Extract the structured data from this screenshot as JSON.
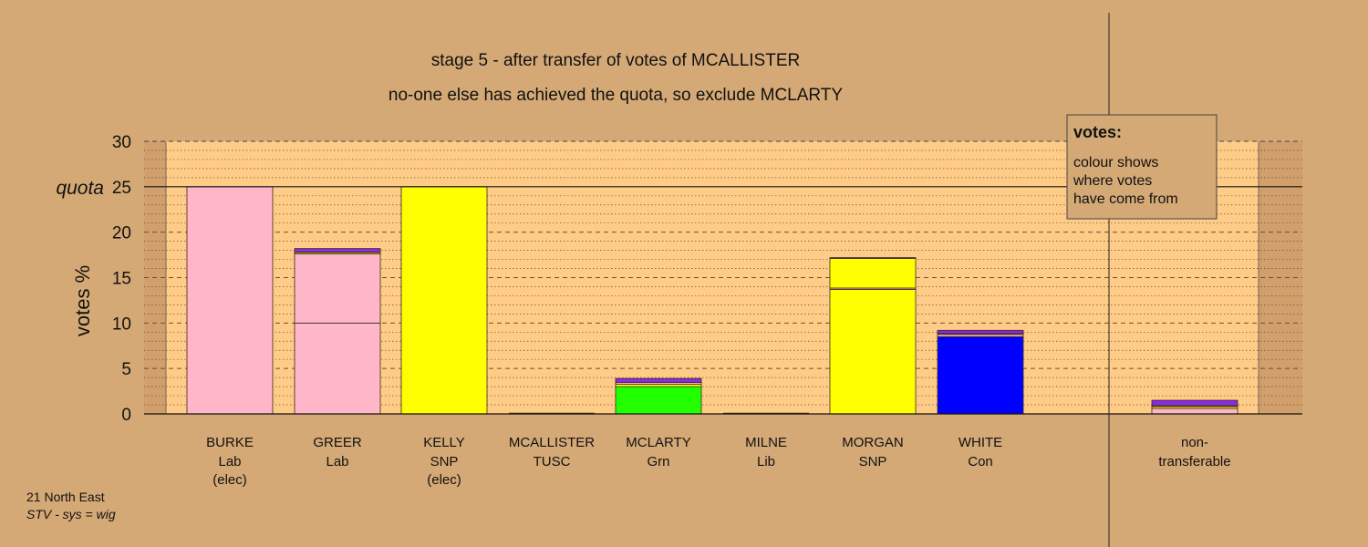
{
  "chart_data": {
    "type": "bar",
    "title": "stage 5 - after transfer of votes of MCALLISTER",
    "subtitle": "no-one else has achieved the quota, so exclude MCLARTY",
    "ylabel": "votes %",
    "ylim": [
      0,
      30
    ],
    "yticks": [
      0,
      5,
      10,
      15,
      20,
      25,
      30
    ],
    "quota": {
      "label": "quota",
      "value": 25
    },
    "grid": true,
    "colors": {
      "Lab": "#ffb6c8",
      "SNP": "#ffff00",
      "Grn": "#22ff00",
      "Con": "#0000ff",
      "Lib": "#ff9a00",
      "TUSC": "#8a2be2",
      "background": "#d5a976"
    },
    "candidates": [
      {
        "name": "BURKE",
        "party": "Lab",
        "note": "(elec)",
        "segments": [
          {
            "from": "Lab",
            "value": 25.0
          }
        ]
      },
      {
        "name": "GREER",
        "party": "Lab",
        "note": "",
        "segments": [
          {
            "from": "Lab",
            "value": 10.0
          },
          {
            "from": "Lab",
            "value": 7.6
          },
          {
            "from": "SNP",
            "value": 0.15
          },
          {
            "from": "Lib",
            "value": 0.05
          },
          {
            "from": "TUSC",
            "value": 0.4
          }
        ]
      },
      {
        "name": "KELLY",
        "party": "SNP",
        "note": "(elec)",
        "segments": [
          {
            "from": "SNP",
            "value": 25.0
          }
        ]
      },
      {
        "name": "MCALLISTER",
        "party": "TUSC",
        "note": "",
        "segments": []
      },
      {
        "name": "MCLARTY",
        "party": "Grn",
        "note": "",
        "segments": [
          {
            "from": "Grn",
            "value": 3.0
          },
          {
            "from": "SNP",
            "value": 0.25
          },
          {
            "from": "Lab",
            "value": 0.2
          },
          {
            "from": "TUSC",
            "value": 0.45
          }
        ]
      },
      {
        "name": "MILNE",
        "party": "Lib",
        "note": "",
        "segments": []
      },
      {
        "name": "MORGAN",
        "party": "SNP",
        "note": "",
        "segments": [
          {
            "from": "SNP",
            "value": 13.7
          },
          {
            "from": "Lab",
            "value": 0.15
          },
          {
            "from": "SNP",
            "value": 3.25
          },
          {
            "from": "TUSC",
            "value": 0.1
          }
        ]
      },
      {
        "name": "WHITE",
        "party": "Con",
        "note": "",
        "segments": [
          {
            "from": "Con",
            "value": 8.5
          },
          {
            "from": "Lab",
            "value": 0.25
          },
          {
            "from": "Lib",
            "value": 0.1
          },
          {
            "from": "TUSC",
            "value": 0.35
          }
        ]
      }
    ],
    "nontransferable": {
      "label_line1": "non-",
      "label_line2": "transferable",
      "segments": [
        {
          "from": "Lab",
          "value": 0.6
        },
        {
          "from": "SNP",
          "value": 0.2
        },
        {
          "from": "Lib",
          "value": 0.1
        },
        {
          "from": "TUSC",
          "value": 0.6
        }
      ]
    }
  },
  "legend": {
    "title": "votes:",
    "lines": [
      "colour shows",
      "where votes",
      "have come from"
    ]
  },
  "footer": {
    "line1": "21 North East",
    "line2": "STV - sys = wig"
  }
}
